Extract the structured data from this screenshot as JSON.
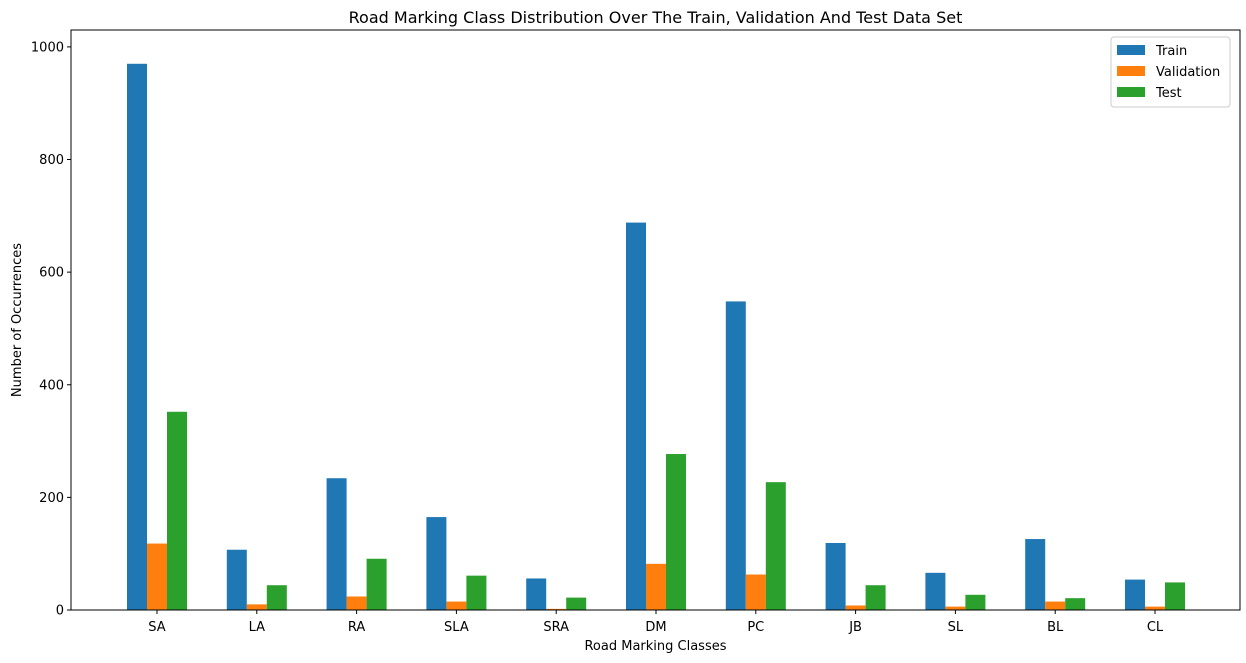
{
  "chart_data": {
    "type": "bar",
    "title": "Road Marking Class Distribution Over The Train, Validation And Test Data Set",
    "xlabel": "Road Marking Classes",
    "ylabel": "Number of Occurrences",
    "ylim": [
      0,
      1030
    ],
    "yticks": [
      0,
      200,
      400,
      600,
      800,
      1000
    ],
    "categories": [
      "SA",
      "LA",
      "RA",
      "SLA",
      "SRA",
      "DM",
      "PC",
      "JB",
      "SL",
      "BL",
      "CL"
    ],
    "series": [
      {
        "name": "Train",
        "color": "#1f77b4",
        "values": [
          970,
          107,
          234,
          165,
          56,
          688,
          548,
          119,
          66,
          126,
          54
        ]
      },
      {
        "name": "Validation",
        "color": "#ff7f0e",
        "values": [
          118,
          10,
          24,
          15,
          2,
          82,
          63,
          8,
          6,
          15,
          6
        ]
      },
      {
        "name": "Test",
        "color": "#2ca02c",
        "values": [
          352,
          44,
          91,
          61,
          22,
          277,
          227,
          44,
          27,
          21,
          49
        ]
      }
    ],
    "legend_position": "top-right",
    "grid": false
  }
}
